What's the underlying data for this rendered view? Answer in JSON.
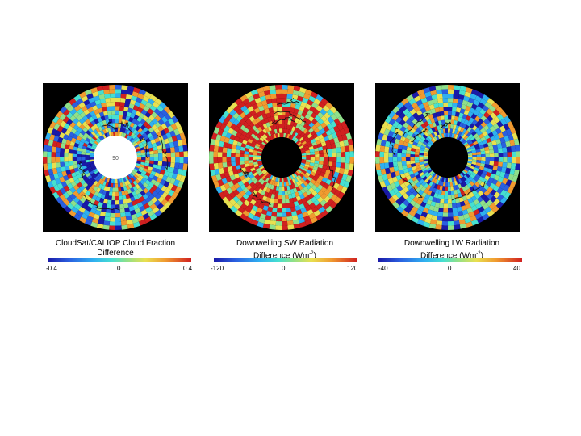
{
  "panels": [
    {
      "id": "cloud-fraction",
      "caption_line1": "CloudSat/CALIOP Cloud Fraction",
      "caption_line2": "Difference",
      "colorbar_min": "-0.4",
      "colorbar_mid": "0",
      "colorbar_max": "0.4",
      "center_fill": "#ffffff",
      "center_label": "90"
    },
    {
      "id": "sw-radiation",
      "caption_line1": "Downwelling SW Radiation",
      "caption_line2": "Difference  (Wm",
      "caption_unit_exp": "-2",
      "caption_close": ")",
      "colorbar_min": "-120",
      "colorbar_mid": "0",
      "colorbar_max": "120",
      "center_fill": "#000000"
    },
    {
      "id": "lw-radiation",
      "caption_line1": "Downwelling LW Radiation",
      "caption_line2": "Difference (Wm",
      "caption_unit_exp": "-2",
      "caption_close": ")",
      "colorbar_min": "-40",
      "colorbar_mid": "0",
      "colorbar_max": "40",
      "center_fill": "#000000"
    }
  ],
  "colors": {
    "panel_background": "#000000",
    "colormap": [
      "#1a1aa8",
      "#2a5fe0",
      "#2fb0f0",
      "#46e0d0",
      "#8fe08a",
      "#e8e050",
      "#f09a30",
      "#d02020"
    ]
  }
}
